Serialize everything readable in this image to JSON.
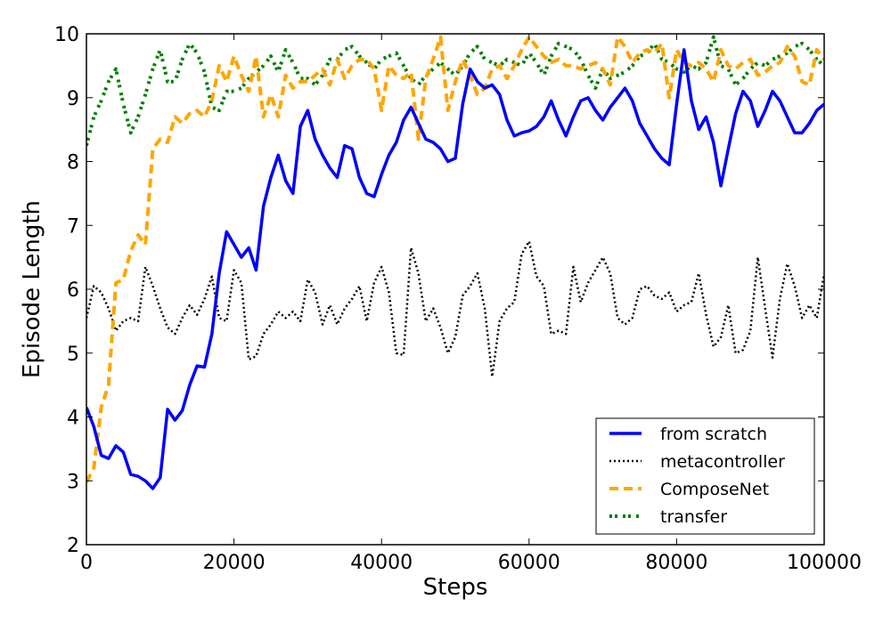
{
  "chart_data": {
    "type": "line",
    "title": "",
    "xlabel": "Steps",
    "ylabel": "Episode Length",
    "xlim": [
      0,
      100000
    ],
    "ylim": [
      2,
      10
    ],
    "xticks": [
      0,
      20000,
      40000,
      60000,
      80000,
      100000
    ],
    "yticks": [
      2,
      3,
      4,
      5,
      6,
      7,
      8,
      9,
      10
    ],
    "xtick_labels": [
      "0",
      "20000",
      "40000",
      "60000",
      "80000",
      "100000"
    ],
    "ytick_labels": [
      "2",
      "3",
      "4",
      "5",
      "6",
      "7",
      "8",
      "9",
      "10"
    ],
    "grid": false,
    "legend_position": "lower-right",
    "x": [
      0,
      1000,
      2000,
      3000,
      4000,
      5000,
      6000,
      7000,
      8000,
      9000,
      10000,
      11000,
      12000,
      13000,
      14000,
      15000,
      16000,
      17000,
      18000,
      19000,
      20000,
      21000,
      22000,
      23000,
      24000,
      25000,
      26000,
      27000,
      28000,
      29000,
      30000,
      31000,
      32000,
      33000,
      34000,
      35000,
      36000,
      37000,
      38000,
      39000,
      40000,
      41000,
      42000,
      43000,
      44000,
      45000,
      46000,
      47000,
      48000,
      49000,
      50000,
      51000,
      52000,
      53000,
      54000,
      55000,
      56000,
      57000,
      58000,
      59000,
      60000,
      61000,
      62000,
      63000,
      64000,
      65000,
      66000,
      67000,
      68000,
      69000,
      70000,
      71000,
      72000,
      73000,
      74000,
      75000,
      76000,
      77000,
      78000,
      79000,
      80000,
      81000,
      82000,
      83000,
      84000,
      85000,
      86000,
      87000,
      88000,
      89000,
      90000,
      91000,
      92000,
      93000,
      94000,
      95000,
      96000,
      97000,
      98000,
      99000,
      100000
    ],
    "series": [
      {
        "name": "from scratch",
        "color": "#0000ff",
        "style": "solid",
        "values": [
          4.15,
          3.85,
          3.4,
          3.35,
          3.55,
          3.45,
          3.1,
          3.07,
          3.0,
          2.88,
          3.05,
          4.12,
          3.95,
          4.1,
          4.5,
          4.8,
          4.78,
          5.3,
          6.25,
          6.9,
          6.7,
          6.5,
          6.65,
          6.3,
          7.3,
          7.75,
          8.1,
          7.7,
          7.5,
          8.55,
          8.8,
          8.35,
          8.1,
          7.9,
          7.75,
          8.25,
          8.2,
          7.75,
          7.5,
          7.45,
          7.8,
          8.1,
          8.3,
          8.65,
          8.85,
          8.6,
          8.35,
          8.3,
          8.2,
          8.0,
          8.05,
          8.9,
          9.45,
          9.25,
          9.15,
          9.2,
          9.05,
          8.65,
          8.4,
          8.45,
          8.48,
          8.55,
          8.7,
          8.95,
          8.65,
          8.4,
          8.7,
          8.95,
          9.0,
          8.8,
          8.65,
          8.85,
          9.0,
          9.15,
          8.95,
          8.6,
          8.4,
          8.2,
          8.05,
          7.95,
          8.9,
          9.75,
          8.95,
          8.5,
          8.7,
          8.3,
          7.62,
          8.2,
          8.75,
          9.1,
          8.95,
          8.55,
          8.8,
          9.1,
          8.95,
          8.7,
          8.45,
          8.45,
          8.6,
          8.8,
          8.9
        ]
      },
      {
        "name": "metacontroller",
        "color": "#000000",
        "style": "dotted",
        "values": [
          5.55,
          6.05,
          5.95,
          5.7,
          5.35,
          5.5,
          5.55,
          5.5,
          6.35,
          6.05,
          5.7,
          5.4,
          5.3,
          5.55,
          5.75,
          5.6,
          5.85,
          6.2,
          5.55,
          5.5,
          6.3,
          6.1,
          4.9,
          4.95,
          5.3,
          5.45,
          5.65,
          5.55,
          5.65,
          5.5,
          6.15,
          5.95,
          5.45,
          5.75,
          5.45,
          5.7,
          5.85,
          6.05,
          5.5,
          6.1,
          6.35,
          5.95,
          5.0,
          4.97,
          6.65,
          6.25,
          5.5,
          5.7,
          5.4,
          5.0,
          5.25,
          5.9,
          6.05,
          6.25,
          5.7,
          4.63,
          5.5,
          5.7,
          5.8,
          6.55,
          6.75,
          6.2,
          6.05,
          5.3,
          5.35,
          5.3,
          6.35,
          5.8,
          6.1,
          6.3,
          6.5,
          6.25,
          5.55,
          5.45,
          5.55,
          6.0,
          6.05,
          5.9,
          5.85,
          5.95,
          5.65,
          5.75,
          5.8,
          6.25,
          5.6,
          5.1,
          5.25,
          5.75,
          5.0,
          5.05,
          5.35,
          6.5,
          5.7,
          4.93,
          5.85,
          6.4,
          6.05,
          5.55,
          5.75,
          5.55,
          6.25
        ]
      },
      {
        "name": "ComposeNet",
        "color": "#ffa500",
        "style": "dashed",
        "values": [
          2.98,
          3.2,
          4.15,
          4.5,
          6.1,
          6.15,
          6.6,
          6.85,
          6.7,
          8.2,
          8.35,
          8.3,
          8.7,
          8.6,
          8.75,
          8.8,
          8.7,
          8.95,
          9.5,
          9.25,
          9.65,
          9.35,
          9.1,
          9.65,
          8.7,
          9.05,
          8.7,
          9.35,
          9.15,
          9.25,
          9.25,
          9.35,
          9.45,
          9.2,
          9.6,
          9.3,
          9.5,
          9.6,
          9.6,
          9.45,
          8.8,
          9.5,
          9.35,
          9.3,
          9.4,
          8.35,
          9.3,
          9.6,
          9.95,
          8.8,
          9.25,
          9.6,
          9.35,
          9.05,
          9.15,
          9.45,
          9.5,
          9.3,
          9.5,
          9.75,
          9.95,
          9.8,
          9.65,
          9.55,
          9.6,
          9.5,
          9.5,
          9.45,
          9.5,
          9.55,
          9.45,
          9.2,
          9.95,
          9.8,
          9.55,
          9.7,
          9.75,
          9.7,
          9.85,
          9.0,
          9.75,
          9.55,
          9.5,
          9.55,
          9.45,
          9.25,
          9.75,
          9.5,
          9.45,
          9.55,
          9.6,
          9.35,
          9.4,
          9.5,
          9.55,
          9.8,
          9.65,
          9.25,
          9.2,
          9.75,
          9.6
        ]
      },
      {
        "name": "transfer",
        "color": "#008000",
        "style": "dashdot",
        "values": [
          8.25,
          8.7,
          8.95,
          9.25,
          9.45,
          8.9,
          8.45,
          8.7,
          9.05,
          9.45,
          9.75,
          9.25,
          9.25,
          9.6,
          9.85,
          9.7,
          9.4,
          8.85,
          8.8,
          9.1,
          9.1,
          9.15,
          9.3,
          9.4,
          9.5,
          9.65,
          9.4,
          9.75,
          9.55,
          9.3,
          9.3,
          9.2,
          9.35,
          9.6,
          9.6,
          9.75,
          9.8,
          9.65,
          9.55,
          9.45,
          9.6,
          9.65,
          9.7,
          9.5,
          9.3,
          9.2,
          9.35,
          9.45,
          9.55,
          9.45,
          9.35,
          9.5,
          9.7,
          9.8,
          9.6,
          9.55,
          9.5,
          9.6,
          9.55,
          9.5,
          9.7,
          9.55,
          9.35,
          9.65,
          9.85,
          9.8,
          9.75,
          9.6,
          9.35,
          9.15,
          9.45,
          9.3,
          9.35,
          9.4,
          9.5,
          9.65,
          9.7,
          9.85,
          9.6,
          9.55,
          9.45,
          9.4,
          9.5,
          9.45,
          9.55,
          9.95,
          9.5,
          9.45,
          9.2,
          9.3,
          9.45,
          9.55,
          9.5,
          9.6,
          9.65,
          9.7,
          9.8,
          9.85,
          9.75,
          9.6,
          9.5
        ]
      }
    ]
  }
}
